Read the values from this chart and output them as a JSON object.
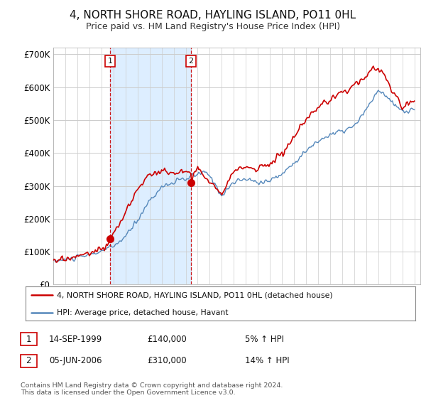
{
  "title": "4, NORTH SHORE ROAD, HAYLING ISLAND, PO11 0HL",
  "subtitle": "Price paid vs. HM Land Registry's House Price Index (HPI)",
  "title_fontsize": 11,
  "subtitle_fontsize": 9,
  "ylim": [
    0,
    720000
  ],
  "yticks": [
    0,
    100000,
    200000,
    300000,
    400000,
    500000,
    600000,
    700000
  ],
  "legend_label_red": "4, NORTH SHORE ROAD, HAYLING ISLAND, PO11 0HL (detached house)",
  "legend_label_blue": "HPI: Average price, detached house, Havant",
  "red_color": "#cc0000",
  "blue_color": "#5588bb",
  "blue_fill_color": "#ddeeff",
  "shade_color": "#ddeeff",
  "sale1_date_num": 1999.71,
  "sale1_price": 140000,
  "sale1_label": "1",
  "sale1_pct": "5% ↑ HPI",
  "sale1_text": "14-SEP-1999",
  "sale2_date_num": 2006.43,
  "sale2_price": 310000,
  "sale2_label": "2",
  "sale2_pct": "14% ↑ HPI",
  "sale2_text": "05-JUN-2006",
  "footer": "Contains HM Land Registry data © Crown copyright and database right 2024.\nThis data is licensed under the Open Government Licence v3.0.",
  "background_color": "#ffffff",
  "grid_color": "#cccccc",
  "xmin": 1995,
  "xmax": 2025.5
}
